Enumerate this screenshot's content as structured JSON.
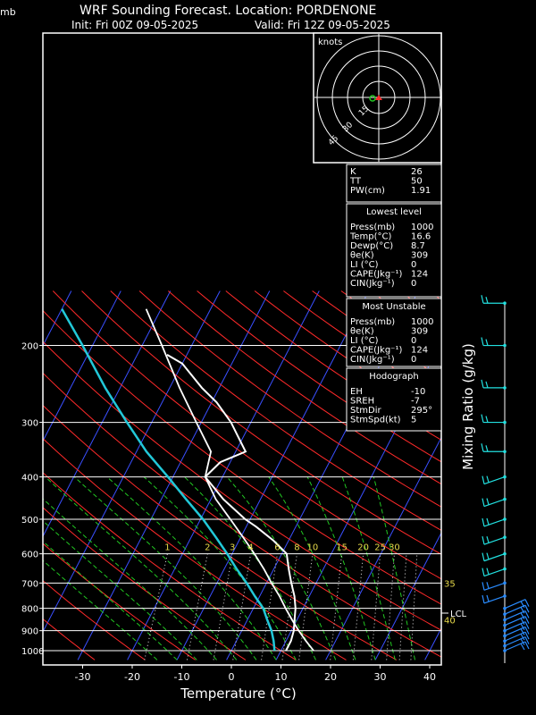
{
  "header": {
    "mb_label": "mb",
    "title": "WRF Sounding Forecast. Location: PORDENONE",
    "init": "Init: Fri 00Z 09-05-2025",
    "valid": "Valid: Fri 12Z 09-05-2025"
  },
  "chart_data": {
    "type": "line",
    "xlabel": "Temperature (°C)",
    "ylabel": "",
    "right_label": "Mixing Ratio (g/kg)",
    "x_ticks": [
      -30,
      -20,
      -10,
      0,
      10,
      20,
      30,
      40
    ],
    "y_ticks": [
      200,
      300,
      400,
      500,
      600,
      700,
      800,
      900,
      1000
    ],
    "ylim": [
      1050,
      150
    ],
    "mixing_ratio_labels": [
      "1",
      "2",
      "3",
      "4",
      "6",
      "8",
      "10",
      "15",
      "20",
      "25",
      "30"
    ],
    "right_axis_labels": [
      "35",
      "40"
    ],
    "lcl_label": "LCL",
    "series": [
      {
        "values": [
          {
            "p": 1000,
            "t": 11.0
          },
          {
            "p": 950,
            "t": 11.0
          },
          {
            "p": 900,
            "t": 10.5
          },
          {
            "p": 850,
            "t": 9.5
          },
          {
            "p": 800,
            "t": 8.5
          },
          {
            "p": 750,
            "t": 7.0
          },
          {
            "p": 700,
            "t": 5.0
          },
          {
            "p": 650,
            "t": 3.0
          },
          {
            "p": 600,
            "t": 1.0
          },
          {
            "p": 560,
            "t": -3.0
          },
          {
            "p": 520,
            "t": -8.0
          },
          {
            "p": 500,
            "t": -11.0
          },
          {
            "p": 450,
            "t": -17.5
          },
          {
            "p": 420,
            "t": -21.0
          },
          {
            "p": 400,
            "t": -23.5
          },
          {
            "p": 370,
            "t": -22.0
          },
          {
            "p": 350,
            "t": -18.0
          },
          {
            "p": 320,
            "t": -21.5
          },
          {
            "p": 300,
            "t": -24.0
          },
          {
            "p": 270,
            "t": -29.0
          },
          {
            "p": 250,
            "t": -33.5
          },
          {
            "p": 220,
            "t": -40.0
          },
          {
            "p": 210,
            "t": -44.0
          }
        ]
      },
      {
        "values": [
          {
            "p": 1000,
            "t": 8.7
          },
          {
            "p": 950,
            "t": 7.5
          },
          {
            "p": 900,
            "t": 6.0
          },
          {
            "p": 850,
            "t": 4.0
          },
          {
            "p": 800,
            "t": 2.0
          },
          {
            "p": 750,
            "t": -1.0
          },
          {
            "p": 700,
            "t": -4.0
          },
          {
            "p": 650,
            "t": -7.5
          },
          {
            "p": 600,
            "t": -11.0
          },
          {
            "p": 550,
            "t": -15.0
          },
          {
            "p": 500,
            "t": -19.5
          },
          {
            "p": 450,
            "t": -25.0
          },
          {
            "p": 400,
            "t": -31.0
          },
          {
            "p": 350,
            "t": -38.0
          },
          {
            "p": 300,
            "t": -45.0
          },
          {
            "p": 250,
            "t": -53.0
          },
          {
            "p": 200,
            "t": -62.0
          },
          {
            "p": 165,
            "t": -70.0
          }
        ]
      },
      {
        "values": [
          {
            "p": 1000,
            "t": 16.6
          },
          {
            "p": 950,
            "t": 14.0
          },
          {
            "p": 900,
            "t": 11.5
          },
          {
            "p": 850,
            "t": 9.0
          },
          {
            "p": 800,
            "t": 6.5
          },
          {
            "p": 750,
            "t": 4.0
          },
          {
            "p": 700,
            "t": 1.0
          },
          {
            "p": 650,
            "t": -2.0
          },
          {
            "p": 600,
            "t": -5.5
          },
          {
            "p": 550,
            "t": -9.5
          },
          {
            "p": 500,
            "t": -14.0
          },
          {
            "p": 450,
            "t": -19.0
          },
          {
            "p": 400,
            "t": -23.5
          },
          {
            "p": 350,
            "t": -25.0
          },
          {
            "p": 300,
            "t": -31.0
          },
          {
            "p": 250,
            "t": -38.0
          },
          {
            "p": 200,
            "t": -46.0
          },
          {
            "p": 165,
            "t": -53.0
          }
        ]
      }
    ],
    "hodograph": {
      "label": "knots",
      "rings": [
        "15",
        "30",
        "45"
      ]
    },
    "wind_barb_levels": [
      160,
      200,
      250,
      300,
      350,
      400,
      450,
      500,
      550,
      600,
      650,
      700,
      750,
      800,
      825,
      850,
      875,
      900,
      925,
      950,
      975,
      1000
    ]
  },
  "indices": [
    {
      "label": "K",
      "value": "26"
    },
    {
      "label": "TT",
      "value": "50"
    },
    {
      "label": "PW(cm)",
      "value": "1.91"
    }
  ],
  "lowest_level": {
    "title": "Lowest level",
    "rows": [
      {
        "label": "Press(mb)",
        "value": "1000"
      },
      {
        "label": "Temp(°C)",
        "value": "16.6"
      },
      {
        "label": "Dewp(°C)",
        "value": "8.7"
      },
      {
        "label": "θe(K)",
        "value": "309"
      },
      {
        "label": "LI (°C)",
        "value": "0"
      },
      {
        "label": "CAPE(Jkg⁻¹)",
        "value": "124"
      },
      {
        "label": "CIN(Jkg⁻¹)",
        "value": "0"
      }
    ]
  },
  "most_unstable": {
    "title": "Most Unstable",
    "rows": [
      {
        "label": "Press(mb)",
        "value": "1000"
      },
      {
        "label": "θe(K)",
        "value": "309"
      },
      {
        "label": "LI (°C)",
        "value": "0"
      },
      {
        "label": "CAPE(Jkg⁻¹)",
        "value": "124"
      },
      {
        "label": "CIN(Jkg⁻¹)",
        "value": "0"
      }
    ]
  },
  "hodograph_box": {
    "title": "Hodograph",
    "rows": [
      {
        "label": "EH",
        "value": "-10"
      },
      {
        "label": "SREH",
        "value": "-7"
      },
      {
        "label": "StmDir",
        "value": "295°"
      },
      {
        "label": "StmSpd(kt)",
        "value": "5"
      }
    ]
  },
  "colors": {
    "temperature": "#ffffff",
    "parcel": "#ffffff",
    "dewpoint": "#22c8d8",
    "isotherm": "#3a4fff",
    "dry_adiabat": "#ff2a2a",
    "moist_adiabat": "#22c822",
    "mixing_ratio": "#e8e8e8",
    "mixing_label": "#e6d94a",
    "barb": "#22e0e0",
    "barb_low": "#2a8cff"
  }
}
